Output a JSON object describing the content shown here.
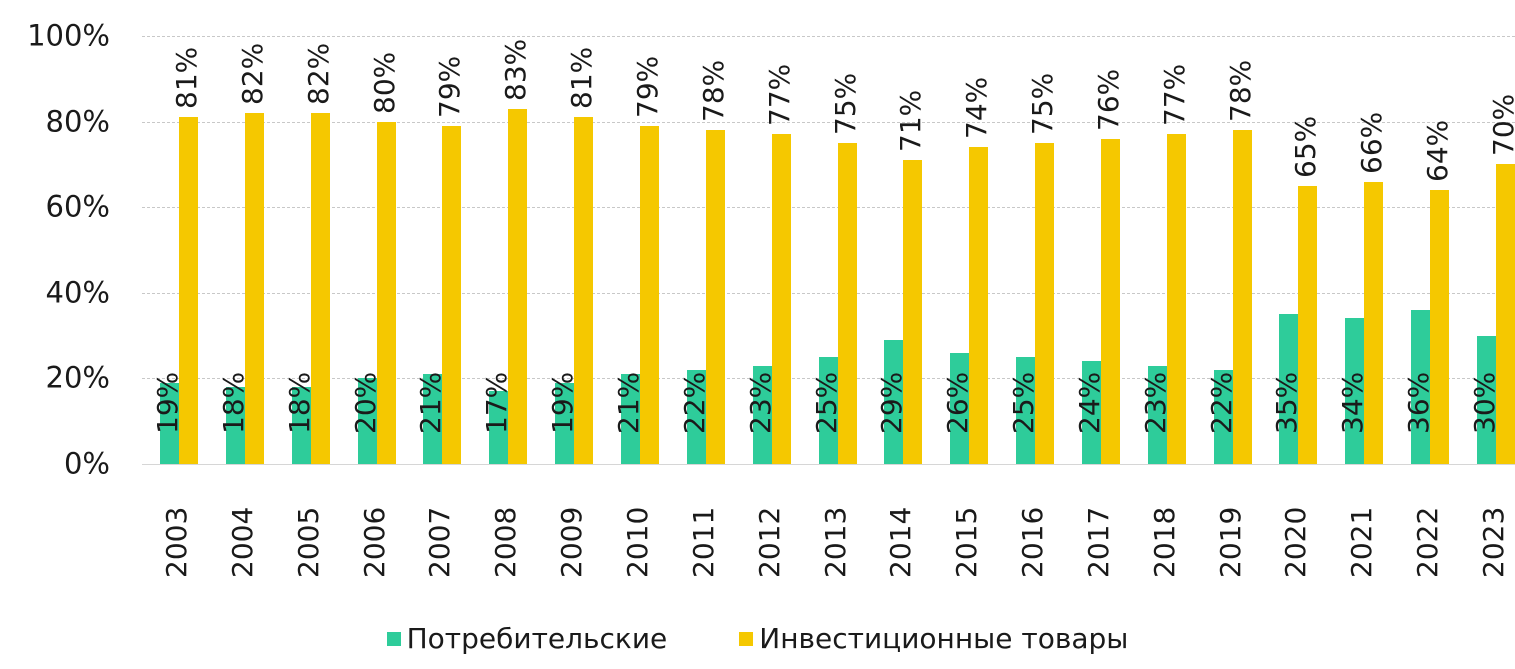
{
  "chart_data": {
    "type": "bar",
    "title": "",
    "xlabel": "",
    "ylabel": "",
    "ylim": [
      0,
      100
    ],
    "yticks": [
      "0%",
      "20%",
      "40%",
      "60%",
      "80%",
      "100%"
    ],
    "grid": true,
    "legend_position": "bottom",
    "value_suffix": "%",
    "categories": [
      "2003",
      "2004",
      "2005",
      "2006",
      "2007",
      "2008",
      "2009",
      "2010",
      "2011",
      "2012",
      "2013",
      "2014",
      "2015",
      "2016",
      "2017",
      "2018",
      "2019",
      "2020",
      "2021",
      "2022",
      "2023"
    ],
    "series": [
      {
        "name": "Потребительские",
        "color": "#2ecc9a",
        "values": [
          19,
          18,
          18,
          20,
          21,
          17,
          19,
          21,
          22,
          23,
          25,
          29,
          26,
          25,
          24,
          23,
          22,
          35,
          34,
          36,
          30
        ]
      },
      {
        "name": "Инвестиционные товары",
        "color": "#f5c800",
        "values": [
          81,
          82,
          82,
          80,
          79,
          83,
          81,
          79,
          78,
          77,
          75,
          71,
          74,
          75,
          76,
          77,
          78,
          65,
          66,
          64,
          70
        ]
      }
    ]
  }
}
